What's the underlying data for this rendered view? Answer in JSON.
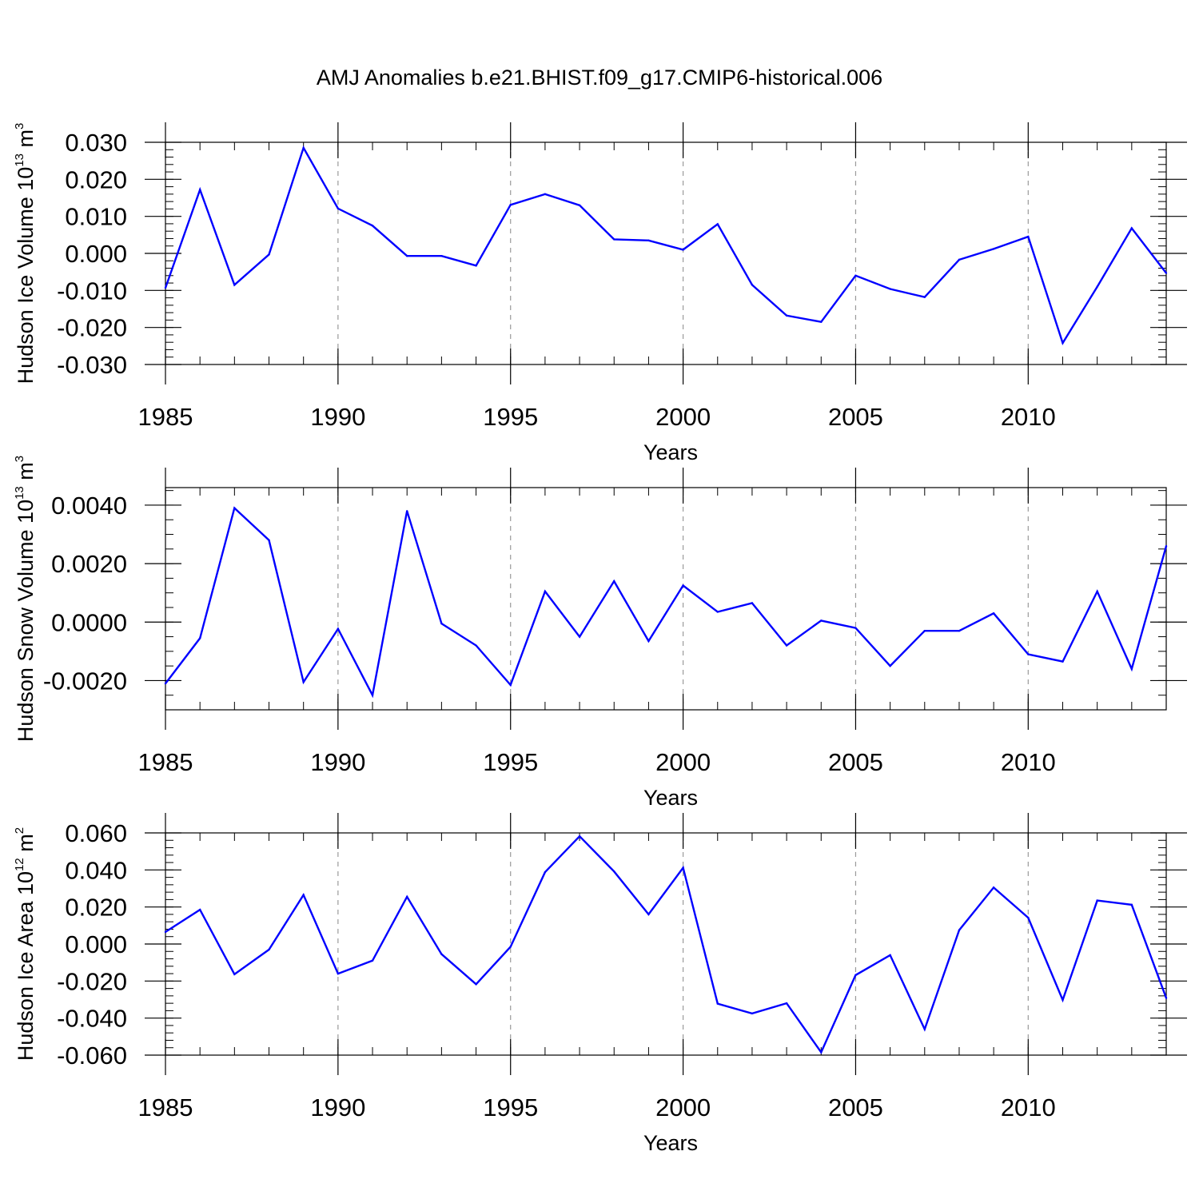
{
  "title": "AMJ Anomalies b.e21.BHIST.f09_g17.CMIP6-historical.006",
  "colors": {
    "line": "#0000ff",
    "axis": "#000000",
    "grid": "#9a9a9a"
  },
  "chart_data": [
    {
      "type": "line",
      "ylabel_main": "Hudson Ice Volume 10",
      "ylabel_exp": "13",
      "ylabel_unit": " m",
      "ylabel_unit_exp": "3",
      "xlabel": "Years",
      "xlim": [
        1985,
        2014
      ],
      "ylim": [
        -0.03,
        0.03
      ],
      "xticks": [
        1985,
        1990,
        1995,
        2000,
        2005,
        2010
      ],
      "xtick_labels": [
        "1985",
        "1990",
        "1995",
        "2000",
        "2005",
        "2010"
      ],
      "yticks": [
        0.03,
        0.02,
        0.01,
        0.0,
        -0.01,
        -0.02,
        -0.03
      ],
      "ytick_labels": [
        "0.030",
        "0.020",
        "0.010",
        "0.000",
        "-0.010",
        "-0.020",
        "-0.030"
      ],
      "yminor_step": 0.002,
      "years": [
        1985,
        1986,
        1987,
        1988,
        1989,
        1990,
        1991,
        1992,
        1993,
        1994,
        1995,
        1996,
        1997,
        1998,
        1999,
        2000,
        2001,
        2002,
        2003,
        2004,
        2005,
        2006,
        2007,
        2008,
        2009,
        2010,
        2011,
        2012,
        2013,
        2014
      ],
      "values": [
        -0.0093,
        0.0172,
        -0.0085,
        -0.0003,
        0.0285,
        0.0121,
        0.0075,
        -0.0007,
        -0.0007,
        -0.0033,
        0.0131,
        0.016,
        0.013,
        0.0038,
        0.0035,
        0.001,
        0.0079,
        -0.0085,
        -0.0168,
        -0.0185,
        -0.006,
        -0.0096,
        -0.0118,
        -0.0017,
        0.0012,
        0.0045,
        -0.0242,
        -0.009,
        0.0068,
        -0.0053
      ]
    },
    {
      "type": "line",
      "ylabel_main": "Hudson Snow Volume 10",
      "ylabel_exp": "13",
      "ylabel_unit": " m",
      "ylabel_unit_exp": "3",
      "xlabel": "Years",
      "xlim": [
        1985,
        2014
      ],
      "ylim": [
        -0.003,
        0.0046
      ],
      "xticks": [
        1985,
        1990,
        1995,
        2000,
        2005,
        2010
      ],
      "xtick_labels": [
        "1985",
        "1990",
        "1995",
        "2000",
        "2005",
        "2010"
      ],
      "yticks": [
        0.004,
        0.002,
        0.0,
        -0.002
      ],
      "ytick_labels": [
        "0.0040",
        "0.0020",
        "0.0000",
        "-0.0020"
      ],
      "yminor_step": 0.0005,
      "years": [
        1985,
        1986,
        1987,
        1988,
        1989,
        1990,
        1991,
        1992,
        1993,
        1994,
        1995,
        1996,
        1997,
        1998,
        1999,
        2000,
        2001,
        2002,
        2003,
        2004,
        2005,
        2006,
        2007,
        2008,
        2009,
        2010,
        2011,
        2012,
        2013,
        2014
      ],
      "values": [
        -0.0021,
        -0.00055,
        0.0039,
        0.0028,
        -0.00205,
        -0.00023,
        -0.0025,
        0.0038,
        -5e-05,
        -0.0008,
        -0.00215,
        0.00105,
        -0.0005,
        0.0014,
        -0.00065,
        0.00125,
        0.00035,
        0.00065,
        -0.0008,
        5e-05,
        -0.0002,
        -0.0015,
        -0.0003,
        -0.0003,
        0.0003,
        -0.0011,
        -0.00135,
        0.00105,
        -0.0016,
        0.0026
      ]
    },
    {
      "type": "line",
      "ylabel_main": "Hudson Ice Area 10",
      "ylabel_exp": "12",
      "ylabel_unit": " m",
      "ylabel_unit_exp": "2",
      "xlabel": "Years",
      "xlim": [
        1985,
        2014
      ],
      "ylim": [
        -0.06,
        0.06
      ],
      "xticks": [
        1985,
        1990,
        1995,
        2000,
        2005,
        2010
      ],
      "xtick_labels": [
        "1985",
        "1990",
        "1995",
        "2000",
        "2005",
        "2010"
      ],
      "yticks": [
        0.06,
        0.04,
        0.02,
        0.0,
        -0.02,
        -0.04,
        -0.06
      ],
      "ytick_labels": [
        "0.060",
        "0.040",
        "0.020",
        "0.000",
        "-0.020",
        "-0.040",
        "-0.060"
      ],
      "yminor_step": 0.004,
      "years": [
        1985,
        1986,
        1987,
        1988,
        1989,
        1990,
        1991,
        1992,
        1993,
        1994,
        1995,
        1996,
        1997,
        1998,
        1999,
        2000,
        2001,
        2002,
        2003,
        2004,
        2005,
        2006,
        2007,
        2008,
        2009,
        2010,
        2011,
        2012,
        2013,
        2014
      ],
      "values": [
        0.0065,
        0.0185,
        -0.0163,
        -0.003,
        0.0265,
        -0.016,
        -0.009,
        0.0255,
        -0.0055,
        -0.0217,
        -0.0015,
        0.0388,
        0.0582,
        0.0392,
        0.016,
        0.0412,
        -0.0322,
        -0.0375,
        -0.032,
        -0.0585,
        -0.0168,
        -0.006,
        -0.046,
        0.0075,
        0.0305,
        0.0142,
        -0.0302,
        0.0235,
        0.0212,
        -0.0292
      ]
    }
  ]
}
